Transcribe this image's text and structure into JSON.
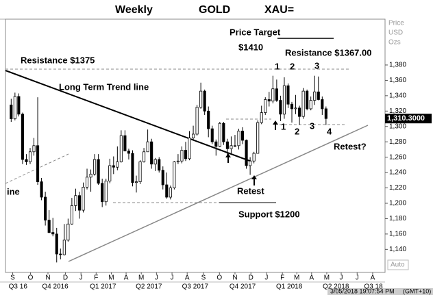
{
  "chart_data": {
    "type": "candlestick",
    "title": [
      "Weekly",
      "GOLD",
      "XAU="
    ],
    "axis_header": [
      "Price",
      "USD",
      "Ozs"
    ],
    "auto_label": "Auto",
    "timestamp": [
      "3/05/2018 19:07:54 PM",
      "(GMT+10)"
    ],
    "last_price": {
      "value": 1310.3,
      "label": "1,310.3000"
    },
    "up_color": "#ffffff",
    "down_color": "#000000",
    "wick_color": "#000000",
    "open": [
      1328,
      1310,
      1339,
      1316,
      1257,
      1254,
      1267,
      1275,
      1228,
      1208,
      1178,
      1162,
      1160,
      1134,
      1133,
      1152,
      1173,
      1197,
      1210,
      1191,
      1221,
      1234,
      1238,
      1257,
      1226,
      1202,
      1229,
      1249,
      1247,
      1254,
      1288,
      1268,
      1265,
      1227,
      1228,
      1254,
      1267,
      1280,
      1251,
      1257,
      1243,
      1224,
      1208,
      1220,
      1254,
      1255,
      1269,
      1258,
      1285,
      1290,
      1325,
      1346,
      1320,
      1297,
      1280,
      1274,
      1304,
      1280,
      1271,
      1275,
      1275,
      1294,
      1282,
      1249,
      1255,
      1265,
      1305,
      1318,
      1335,
      1333,
      1349,
      1334,
      1316,
      1353,
      1329,
      1323,
      1324,
      1313,
      1346,
      1323,
      1334,
      1345,
      1335,
      1323
    ],
    "high": [
      1336,
      1344,
      1343,
      1318,
      1264,
      1272,
      1285,
      1338,
      1233,
      1215,
      1191,
      1181,
      1168,
      1141,
      1173,
      1180,
      1207,
      1219,
      1215,
      1227,
      1245,
      1244,
      1264,
      1264,
      1232,
      1232,
      1258,
      1261,
      1274,
      1295,
      1295,
      1271,
      1269,
      1236,
      1256,
      1272,
      1296,
      1284,
      1259,
      1260,
      1248,
      1240,
      1223,
      1255,
      1264,
      1274,
      1280,
      1294,
      1301,
      1328,
      1357,
      1348,
      1326,
      1301,
      1283,
      1306,
      1306,
      1284,
      1287,
      1289,
      1297,
      1299,
      1283,
      1260,
      1267,
      1308,
      1327,
      1338,
      1345,
      1366,
      1361,
      1340,
      1364,
      1356,
      1332,
      1341,
      1327,
      1350,
      1348,
      1339,
      1366,
      1365,
      1339,
      1326
    ],
    "low": [
      1306,
      1308,
      1313,
      1251,
      1250,
      1251,
      1262,
      1224,
      1204,
      1171,
      1161,
      1157,
      1123,
      1127,
      1132,
      1150,
      1172,
      1190,
      1180,
      1188,
      1218,
      1215,
      1236,
      1224,
      1195,
      1197,
      1226,
      1238,
      1243,
      1253,
      1268,
      1257,
      1222,
      1214,
      1225,
      1253,
      1267,
      1245,
      1242,
      1240,
      1218,
      1206,
      1205,
      1218,
      1251,
      1252,
      1255,
      1256,
      1282,
      1288,
      1323,
      1315,
      1286,
      1277,
      1262,
      1273,
      1276,
      1263,
      1265,
      1273,
      1270,
      1277,
      1245,
      1237,
      1252,
      1265,
      1303,
      1315,
      1326,
      1330,
      1332,
      1307,
      1310,
      1324,
      1305,
      1316,
      1302,
      1310,
      1321,
      1321,
      1328,
      1334,
      1315,
      1302
    ],
    "close": [
      1310,
      1339,
      1316,
      1257,
      1254,
      1267,
      1275,
      1228,
      1208,
      1178,
      1162,
      1160,
      1134,
      1133,
      1152,
      1173,
      1197,
      1210,
      1191,
      1221,
      1234,
      1238,
      1257,
      1226,
      1202,
      1229,
      1249,
      1247,
      1254,
      1288,
      1268,
      1265,
      1227,
      1228,
      1254,
      1267,
      1280,
      1251,
      1257,
      1243,
      1224,
      1208,
      1220,
      1254,
      1255,
      1269,
      1258,
      1285,
      1290,
      1325,
      1346,
      1320,
      1297,
      1280,
      1274,
      1304,
      1280,
      1271,
      1275,
      1275,
      1294,
      1282,
      1249,
      1255,
      1265,
      1305,
      1318,
      1335,
      1333,
      1349,
      1334,
      1316,
      1353,
      1329,
      1323,
      1324,
      1313,
      1346,
      1323,
      1334,
      1345,
      1335,
      1323,
      1310.3
    ],
    "xlim": [
      -1.5,
      98.2
    ],
    "xticks": [
      {
        "value": 0.4,
        "label": "S"
      },
      {
        "value": 5.1,
        "label": "O"
      },
      {
        "value": 9.7,
        "label": "N"
      },
      {
        "value": 14.3,
        "label": "D"
      },
      {
        "value": 18.4,
        "label": "J"
      },
      {
        "value": 22.4,
        "label": "F"
      },
      {
        "value": 26.4,
        "label": "M"
      },
      {
        "value": 30.3,
        "label": "A"
      },
      {
        "value": 34.3,
        "label": "M"
      },
      {
        "value": 38.3,
        "label": "J"
      },
      {
        "value": 42.4,
        "label": "J"
      },
      {
        "value": 46.4,
        "label": "A"
      },
      {
        "value": 50.7,
        "label": "S"
      },
      {
        "value": 54.9,
        "label": "O"
      },
      {
        "value": 59.0,
        "label": "N"
      },
      {
        "value": 63.2,
        "label": "D"
      },
      {
        "value": 67.3,
        "label": "J"
      },
      {
        "value": 71.5,
        "label": "F"
      },
      {
        "value": 75.3,
        "label": "M"
      },
      {
        "value": 79.2,
        "label": "A"
      },
      {
        "value": 83.2,
        "label": "M"
      },
      {
        "value": 87.0,
        "label": "J"
      },
      {
        "value": 91.2,
        "label": "J"
      },
      {
        "value": 95.3,
        "label": "A"
      }
    ],
    "quarter_ticks": [
      {
        "value": 1.8,
        "label": "Q3 16"
      },
      {
        "value": 11.6,
        "label": "Q4 2016"
      },
      {
        "value": 24.2,
        "label": "Q1 2017"
      },
      {
        "value": 36.3,
        "label": "Q2 2017"
      },
      {
        "value": 48.5,
        "label": "Q3 2017"
      },
      {
        "value": 61.0,
        "label": "Q4 2017"
      },
      {
        "value": 73.3,
        "label": "Q1 2018"
      },
      {
        "value": 85.6,
        "label": "Q2 2018"
      },
      {
        "value": 95.5,
        "label": "Q3 18"
      }
    ],
    "ylim": [
      1110,
      1445
    ],
    "yticks": [
      {
        "value": 1140,
        "label": "1,140"
      },
      {
        "value": 1160,
        "label": "1,160"
      },
      {
        "value": 1180,
        "label": "1,180"
      },
      {
        "value": 1200,
        "label": "1,200"
      },
      {
        "value": 1220,
        "label": "1,220"
      },
      {
        "value": 1240,
        "label": "1,240"
      },
      {
        "value": 1260,
        "label": "1,260"
      },
      {
        "value": 1280,
        "label": "1,280"
      },
      {
        "value": 1300,
        "label": "1,300"
      },
      {
        "value": 1320,
        "label": "1,320"
      },
      {
        "value": 1340,
        "label": "1,340"
      },
      {
        "value": 1360,
        "label": "1,360"
      },
      {
        "value": 1380,
        "label": "1,380"
      }
    ],
    "annotations": [
      "Price Target",
      "$1410",
      "Resistance $1367.00",
      "Resistance $1375",
      "Long Term Trend line",
      "1",
      "2",
      "3",
      "1",
      "2",
      "3",
      "4",
      "Retest",
      "Retest?",
      "Support $1200",
      "ine"
    ]
  }
}
